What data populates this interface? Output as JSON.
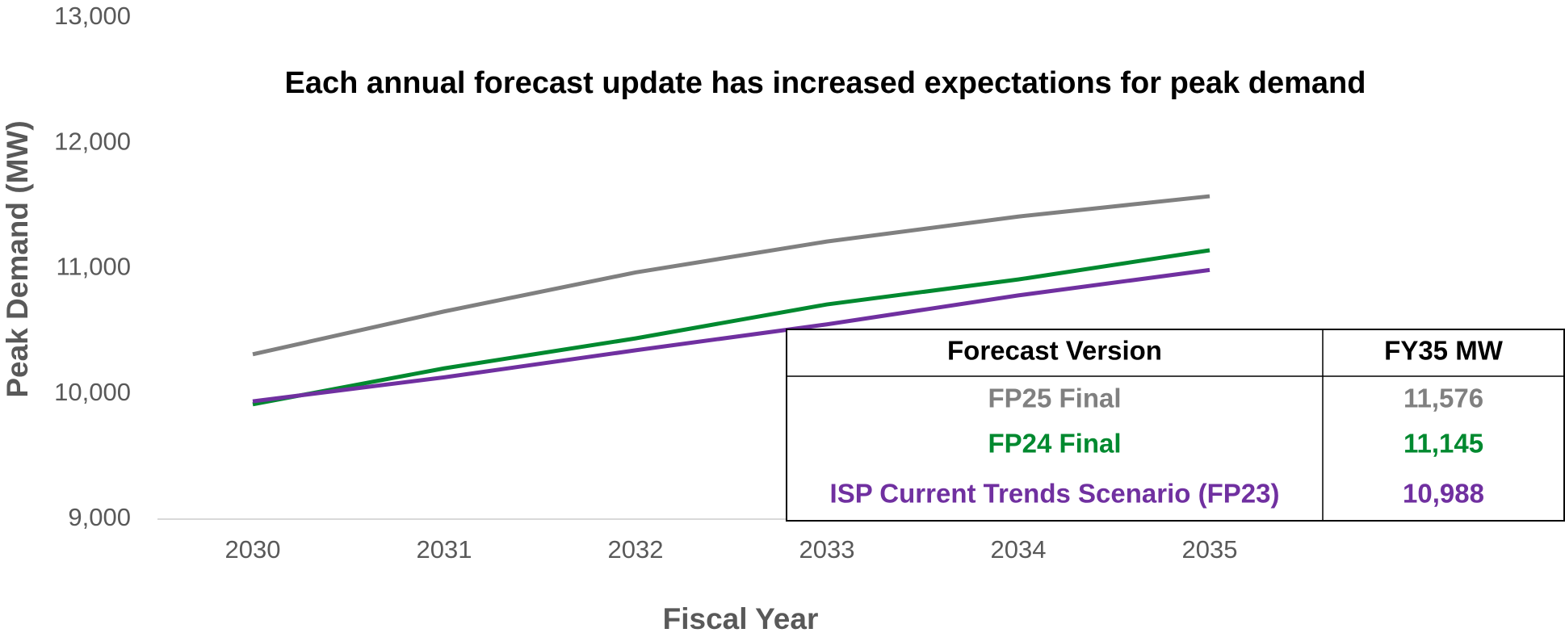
{
  "chart_data": {
    "type": "line",
    "title": "Each annual forecast update has increased expectations for peak demand",
    "x_label": "Fiscal Year",
    "y_label": "Peak Demand (MW)",
    "categories": [
      "2030",
      "2031",
      "2032",
      "2033",
      "2034",
      "2035"
    ],
    "series": [
      {
        "name": "FP25 Final",
        "color": "#808080",
        "values": [
          10315,
          10657,
          10968,
          11215,
          11414,
          11576
        ]
      },
      {
        "name": "FP24 Final",
        "color": "#00892f",
        "values": [
          9916,
          10203,
          10442,
          10713,
          10912,
          11145
        ]
      },
      {
        "name": "ISP Current Trends Scenario (FP23)",
        "color": "#7030a0",
        "values": [
          9940,
          10131,
          10347,
          10554,
          10785,
          10988
        ]
      }
    ],
    "ylim": [
      9000,
      13000
    ],
    "yticks": [
      {
        "value": 9000,
        "label": "9,000"
      },
      {
        "value": 10000,
        "label": "10,000"
      },
      {
        "value": 11000,
        "label": "11,000"
      },
      {
        "value": 12000,
        "label": "12,000"
      },
      {
        "value": 13000,
        "label": "13,000"
      }
    ],
    "grid": false,
    "table": {
      "header": [
        "Forecast Version",
        "FY35 MW"
      ],
      "values": [
        "11,576",
        "11,145",
        "10,988"
      ]
    }
  }
}
